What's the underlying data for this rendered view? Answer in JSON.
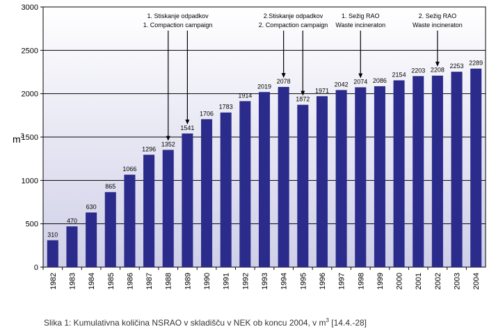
{
  "chart_data": {
    "type": "bar",
    "title": "",
    "xlabel": "",
    "ylabel": "m",
    "ylabel_superscript": "3",
    "ylim": [
      0,
      3000
    ],
    "yticks": [
      0,
      500,
      1000,
      1500,
      2000,
      2500,
      3000
    ],
    "grid": true,
    "categories": [
      "1982",
      "1983",
      "1984",
      "1985",
      "1986",
      "1987",
      "1988",
      "1989",
      "1990",
      "1991",
      "1992",
      "1993",
      "1994",
      "1995",
      "1996",
      "1997",
      "1998",
      "1999",
      "2000",
      "2001",
      "2002",
      "2003",
      "2004"
    ],
    "values": [
      310,
      470,
      630,
      865,
      1066,
      1296,
      1352,
      1541,
      1706,
      1783,
      1914,
      2019,
      2078,
      1872,
      1971,
      2042,
      2074,
      2086,
      2154,
      2203,
      2208,
      2253,
      2289
    ],
    "bar_color": "#2b2b8c",
    "annotations": [
      {
        "lines": [
          "1. Stiskanje odpadkov",
          "1. Compaction campaign"
        ],
        "arrows_to": [
          "1988",
          "1989"
        ]
      },
      {
        "lines": [
          "2.Stiskanje odpadkov",
          "2. Compaction campaign"
        ],
        "arrows_to": [
          "1994",
          "1995"
        ]
      },
      {
        "lines": [
          "1. Sežig RAO",
          "Waste incineraton"
        ],
        "arrows_to": [
          "1998"
        ]
      },
      {
        "lines": [
          "2. Sežig RAO",
          "Waste incineraton"
        ],
        "arrows_to": [
          "2002"
        ]
      }
    ]
  },
  "caption": {
    "text": "Slika 1: Kumulativna količina NSRAO v skladišču v NEK ob koncu 2004, v m",
    "superscript": "3",
    "suffix": " [14.4.-28]"
  }
}
